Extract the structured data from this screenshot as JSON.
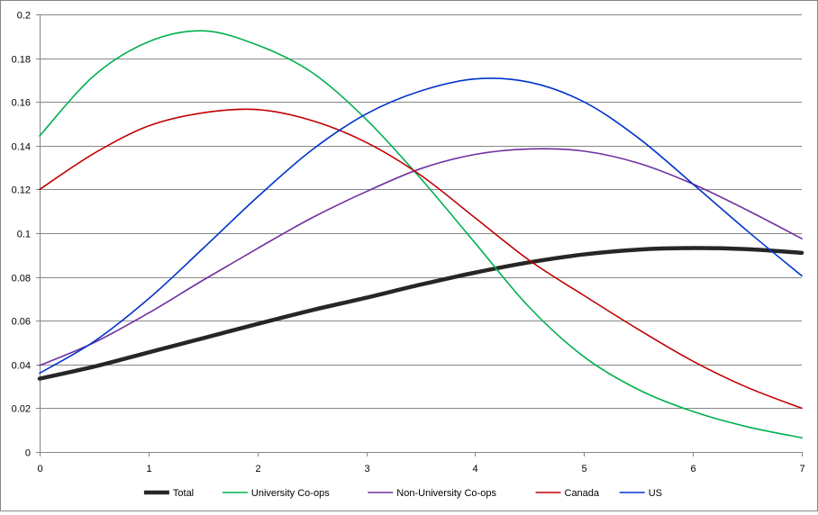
{
  "chart_data": {
    "type": "line",
    "title": "",
    "xlabel": "",
    "ylabel": "",
    "xlim": [
      0,
      7
    ],
    "ylim": [
      0,
      0.2
    ],
    "x_ticks": [
      "0",
      "1",
      "2",
      "3",
      "4",
      "5",
      "6",
      "7"
    ],
    "y_ticks": [
      "0",
      "0.02",
      "0.04",
      "0.06",
      "0.08",
      "0.1",
      "0.12",
      "0.14",
      "0.16",
      "0.18",
      "0.2"
    ],
    "grid": "horizontal",
    "legend_position": "bottom",
    "x": [
      0,
      0.5,
      1,
      1.5,
      2,
      2.5,
      3,
      3.5,
      4,
      4.5,
      5,
      5.5,
      6,
      6.5,
      7
    ],
    "series": [
      {
        "name": "Total",
        "color": "#262626",
        "values": [
          0.0335,
          0.039,
          0.0455,
          0.052,
          0.0585,
          0.0648,
          0.0705,
          0.0765,
          0.082,
          0.0867,
          0.0903,
          0.0925,
          0.0932,
          0.0927,
          0.091
        ]
      },
      {
        "name": "University Co-ops",
        "color": "#00b050",
        "values": [
          0.1445,
          0.172,
          0.1875,
          0.1925,
          0.186,
          0.1735,
          0.152,
          0.125,
          0.0955,
          0.066,
          0.0435,
          0.0285,
          0.0185,
          0.0115,
          0.0065
        ]
      },
      {
        "name": "Non-University Co-ops",
        "color": "#7030a0",
        "values": [
          0.0395,
          0.05,
          0.0635,
          0.0785,
          0.093,
          0.107,
          0.119,
          0.1295,
          0.136,
          0.1385,
          0.1375,
          0.132,
          0.1225,
          0.1105,
          0.0975
        ]
      },
      {
        "name": "Canada",
        "color": "#c00000",
        "values": [
          0.12,
          0.1365,
          0.149,
          0.155,
          0.1565,
          0.1515,
          0.1415,
          0.1265,
          0.107,
          0.0875,
          0.0715,
          0.056,
          0.0415,
          0.0295,
          0.02
        ]
      },
      {
        "name": "US",
        "color": "#0033cc",
        "values": [
          0.036,
          0.0505,
          0.07,
          0.093,
          0.1165,
          0.138,
          0.1545,
          0.165,
          0.1705,
          0.169,
          0.16,
          0.1435,
          0.1225,
          0.101,
          0.0805
        ]
      }
    ],
    "gridline_color": "#868686",
    "axis_color": "#868686"
  }
}
